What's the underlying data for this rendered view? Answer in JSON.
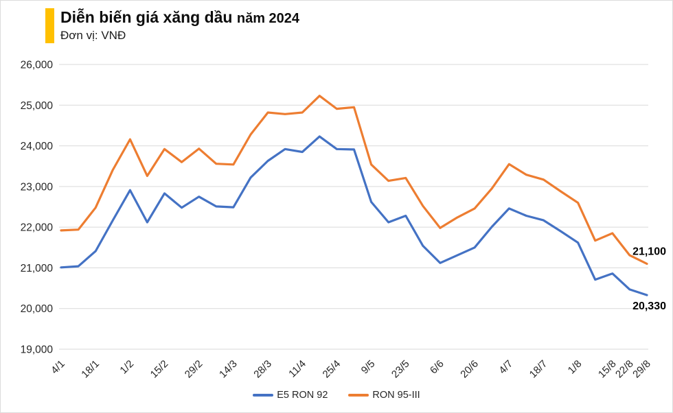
{
  "header": {
    "title_main": "Diễn biến giá xăng dầu",
    "title_suffix": "năm 2024",
    "subtitle": "Đơn vị: VNĐ",
    "accent_color": "#FFC000"
  },
  "colors": {
    "grid": "#D9D9D9",
    "axis_text": "#262626",
    "e5_blue": "#4472C4",
    "ron95_orange": "#ED7D31"
  },
  "legend": {
    "items": [
      {
        "label": "E5 RON 92",
        "color": "#4472C4"
      },
      {
        "label": "RON 95-III",
        "color": "#ED7D31"
      }
    ]
  },
  "chart_data": {
    "type": "line",
    "title": "Diễn biến giá xăng dầu năm 2024",
    "subtitle": "Đơn vị: VNĐ",
    "xlabel": "",
    "ylabel": "",
    "ylim": [
      19000,
      26000
    ],
    "y_tick_step": 1000,
    "y_tick_labels": [
      "19,000",
      "20,000",
      "21,000",
      "22,000",
      "23,000",
      "24,000",
      "25,000",
      "26,000"
    ],
    "grid": "horizontal",
    "legend_position": "bottom",
    "x": [
      "4/1",
      "11/1",
      "18/1",
      "25/1",
      "1/2",
      "8/2",
      "15/2",
      "22/2",
      "29/2",
      "7/3",
      "14/3",
      "21/3",
      "28/3",
      "4/4",
      "11/4",
      "17/4",
      "25/4",
      "2/5",
      "9/5",
      "16/5",
      "23/5",
      "30/5",
      "6/6",
      "13/6",
      "20/6",
      "27/6",
      "4/7",
      "11/7",
      "18/7",
      "25/7",
      "1/8",
      "8/8",
      "15/8",
      "22/8",
      "29/8"
    ],
    "x_tick_indices": [
      0,
      2,
      4,
      6,
      8,
      10,
      12,
      14,
      16,
      18,
      20,
      22,
      24,
      26,
      28,
      30,
      32,
      33,
      34
    ],
    "series": [
      {
        "name": "E5 RON 92",
        "color": "#4472C4",
        "values": [
          21010,
          21040,
          21410,
          22170,
          22910,
          22120,
          22830,
          22480,
          22750,
          22510,
          22490,
          23220,
          23630,
          23920,
          23850,
          24230,
          23920,
          23910,
          22620,
          22120,
          22280,
          21540,
          21120,
          21310,
          21500,
          22010,
          22460,
          22280,
          22170,
          21900,
          21620,
          20710,
          20860,
          20470,
          20330
        ]
      },
      {
        "name": "RON 95-III",
        "color": "#ED7D31",
        "values": [
          21920,
          21940,
          22480,
          23410,
          24160,
          23260,
          23920,
          23600,
          23930,
          23560,
          23540,
          24280,
          24820,
          24780,
          24820,
          25230,
          24910,
          24950,
          23540,
          23140,
          23210,
          22520,
          21980,
          22240,
          22460,
          22950,
          23550,
          23290,
          23170,
          22880,
          22600,
          21670,
          21850,
          21310,
          21100
        ]
      }
    ],
    "end_labels": [
      {
        "series_index": 1,
        "text": "21,100"
      },
      {
        "series_index": 0,
        "text": "20,330"
      }
    ]
  }
}
